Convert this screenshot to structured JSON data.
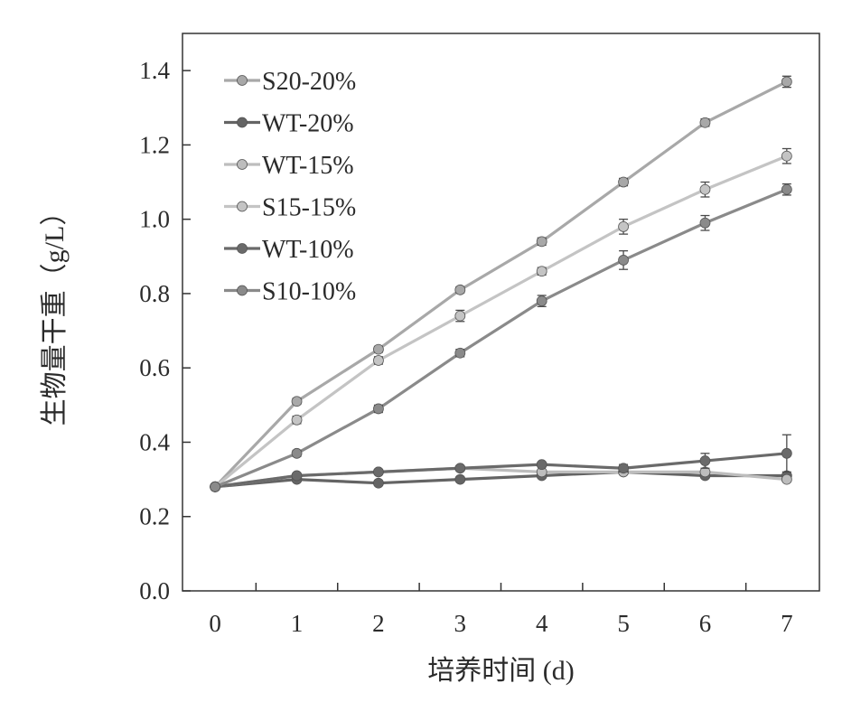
{
  "chart_data": {
    "type": "line",
    "title": "",
    "xlabel": "培养时间 (d)",
    "ylabel": "生物量干重（g/L）",
    "x": [
      0,
      1,
      2,
      3,
      4,
      5,
      6,
      7
    ],
    "xlim": [
      -0.4,
      7.4
    ],
    "ylim": [
      0.0,
      1.5
    ],
    "x_ticks": [
      "0",
      "1",
      "2",
      "3",
      "4",
      "5",
      "6",
      "7"
    ],
    "y_ticks": [
      "0.0",
      "0.2",
      "0.4",
      "0.6",
      "0.8",
      "1.0",
      "1.2",
      "1.4"
    ],
    "grid": false,
    "legend_position": "top-left",
    "series": [
      {
        "name": "S20-20%",
        "color": "#a8a8a8",
        "values": [
          0.28,
          0.51,
          0.65,
          0.81,
          0.94,
          1.1,
          1.26,
          1.37
        ],
        "errors": [
          0.005,
          0.008,
          0.008,
          0.008,
          0.01,
          0.01,
          0.01,
          0.015
        ]
      },
      {
        "name": "WT-20%",
        "color": "#646464",
        "values": [
          0.28,
          0.3,
          0.29,
          0.3,
          0.31,
          0.32,
          0.31,
          0.31
        ],
        "errors": [
          0.005,
          0.005,
          0.005,
          0.005,
          0.005,
          0.005,
          0.005,
          0.005
        ]
      },
      {
        "name": "WT-15%",
        "color": "#bdbdbd",
        "values": [
          0.28,
          0.31,
          0.32,
          0.33,
          0.32,
          0.32,
          0.32,
          0.3
        ],
        "errors": [
          0.005,
          0.005,
          0.005,
          0.005,
          0.005,
          0.005,
          0.005,
          0.005
        ]
      },
      {
        "name": "S15-15%",
        "color": "#c4c4c4",
        "values": [
          0.28,
          0.46,
          0.62,
          0.74,
          0.86,
          0.98,
          1.08,
          1.17
        ],
        "errors": [
          0.005,
          0.01,
          0.01,
          0.015,
          0.01,
          0.02,
          0.02,
          0.02
        ]
      },
      {
        "name": "WT-10%",
        "color": "#6a6a6a",
        "values": [
          0.28,
          0.31,
          0.32,
          0.33,
          0.34,
          0.33,
          0.35,
          0.37
        ],
        "errors": [
          0.005,
          0.005,
          0.005,
          0.005,
          0.005,
          0.01,
          0.02,
          0.05
        ]
      },
      {
        "name": "S10-10%",
        "color": "#8a8a8a",
        "values": [
          0.28,
          0.37,
          0.49,
          0.64,
          0.78,
          0.89,
          0.99,
          1.08
        ],
        "errors": [
          0.005,
          0.008,
          0.01,
          0.01,
          0.015,
          0.025,
          0.02,
          0.015
        ]
      }
    ]
  }
}
